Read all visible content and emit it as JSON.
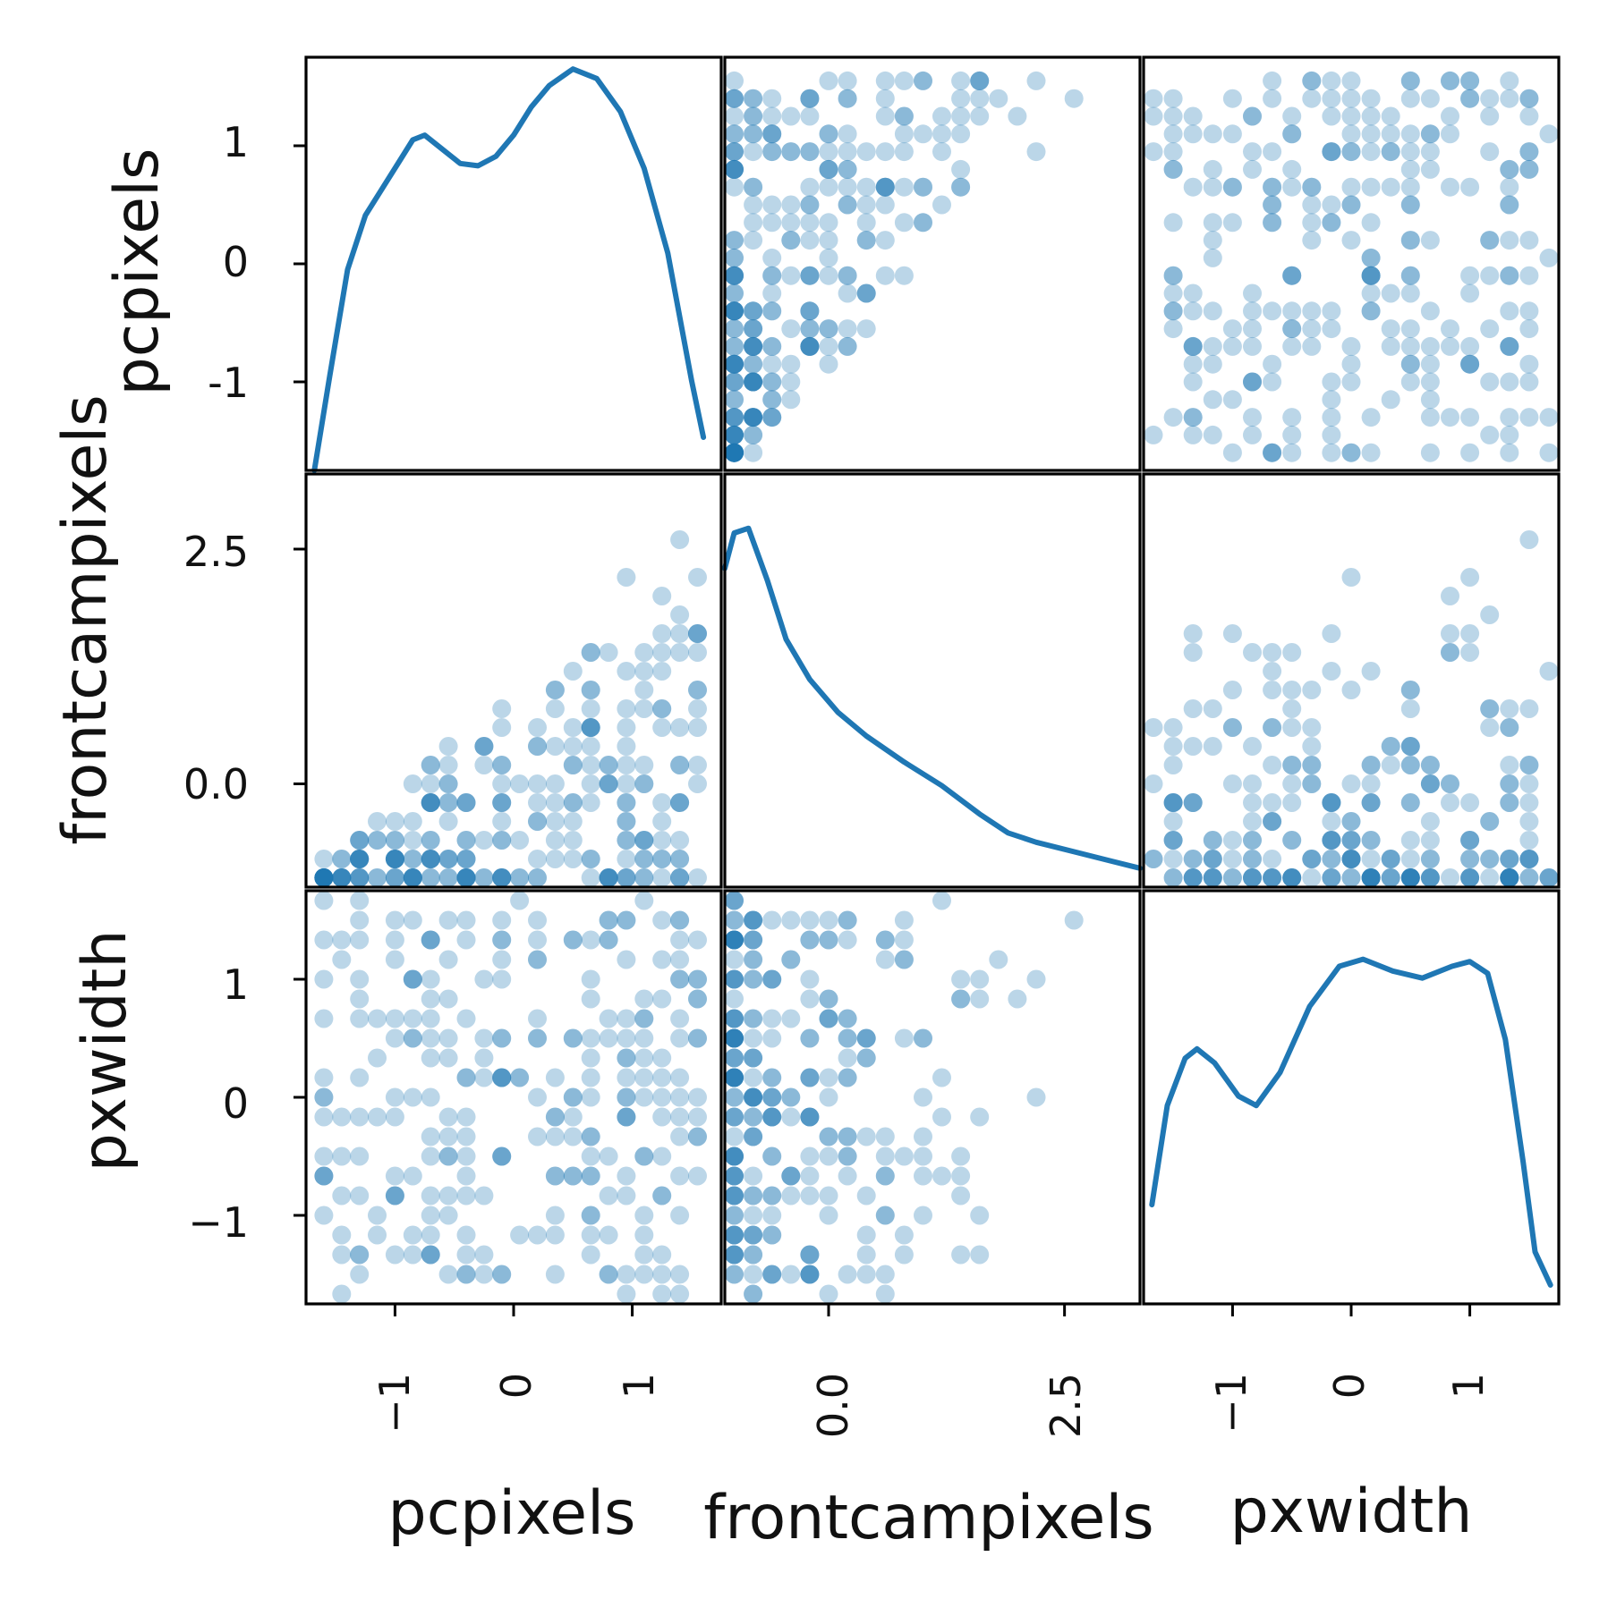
{
  "chart_data": {
    "type": "scatter",
    "variables": [
      "pcpixels",
      "frontcampixels",
      "pxwidth"
    ],
    "color": "#1f77b4",
    "point_alpha": 0.3,
    "diagonal": "kde",
    "ranges": {
      "pcpixels": [
        -1.75,
        1.75
      ],
      "frontcampixels": [
        -1.1,
        3.3
      ],
      "pxwidth": [
        -1.75,
        1.75
      ]
    },
    "ticks": {
      "pcpixels": [
        -1,
        0,
        1
      ],
      "frontcampixels": [
        0.0,
        2.5
      ],
      "pxwidth": [
        -1,
        0,
        1
      ]
    },
    "tick_labels": {
      "pcpixels_x": [
        "−1",
        "0",
        "1"
      ],
      "pcpixels_y": [
        "-1",
        "0",
        "1"
      ],
      "frontcampixels_x": [
        "0.0",
        "2.5"
      ],
      "frontcampixels_y": [
        "0.0",
        "2.5"
      ],
      "pxwidth_x": [
        "−1",
        "0",
        "1"
      ],
      "pxwidth_y": [
        "−1",
        "0",
        "1"
      ]
    },
    "x_labels": [
      "pcpixels",
      "frontcampixels",
      "pxwidth"
    ],
    "y_labels": [
      "pcpixels",
      "frontcampixels",
      "pxwidth"
    ],
    "kde": {
      "pcpixels": [
        [
          -1.68,
          0.0
        ],
        [
          -1.55,
          0.4
        ],
        [
          -1.4,
          0.85
        ],
        [
          -1.25,
          1.08
        ],
        [
          -1.1,
          1.2
        ],
        [
          -0.95,
          1.32
        ],
        [
          -0.85,
          1.4
        ],
        [
          -0.75,
          1.42
        ],
        [
          -0.6,
          1.36
        ],
        [
          -0.45,
          1.3
        ],
        [
          -0.3,
          1.29
        ],
        [
          -0.15,
          1.33
        ],
        [
          0.0,
          1.42
        ],
        [
          0.15,
          1.54
        ],
        [
          0.3,
          1.63
        ],
        [
          0.5,
          1.7
        ],
        [
          0.7,
          1.66
        ],
        [
          0.9,
          1.52
        ],
        [
          1.1,
          1.28
        ],
        [
          1.3,
          0.92
        ],
        [
          1.5,
          0.38
        ],
        [
          1.6,
          0.14
        ]
      ],
      "frontcampixels": [
        [
          -1.1,
          1.35
        ],
        [
          -1.0,
          1.5
        ],
        [
          -0.85,
          1.52
        ],
        [
          -0.65,
          1.3
        ],
        [
          -0.45,
          1.05
        ],
        [
          -0.2,
          0.88
        ],
        [
          0.1,
          0.74
        ],
        [
          0.4,
          0.64
        ],
        [
          0.8,
          0.53
        ],
        [
          1.2,
          0.43
        ],
        [
          1.6,
          0.31
        ],
        [
          1.9,
          0.23
        ],
        [
          2.2,
          0.19
        ],
        [
          2.6,
          0.15
        ],
        [
          3.0,
          0.11
        ],
        [
          3.3,
          0.08
        ]
      ],
      "pxwidth": [
        [
          -1.68,
          0.42
        ],
        [
          -1.55,
          0.84
        ],
        [
          -1.4,
          1.04
        ],
        [
          -1.3,
          1.08
        ],
        [
          -1.15,
          1.02
        ],
        [
          -0.95,
          0.88
        ],
        [
          -0.8,
          0.84
        ],
        [
          -0.6,
          0.98
        ],
        [
          -0.35,
          1.26
        ],
        [
          -0.1,
          1.43
        ],
        [
          0.1,
          1.46
        ],
        [
          0.35,
          1.41
        ],
        [
          0.6,
          1.38
        ],
        [
          0.85,
          1.43
        ],
        [
          1.0,
          1.45
        ],
        [
          1.15,
          1.4
        ],
        [
          1.3,
          1.12
        ],
        [
          1.45,
          0.6
        ],
        [
          1.55,
          0.22
        ],
        [
          1.68,
          0.08
        ]
      ]
    }
  }
}
